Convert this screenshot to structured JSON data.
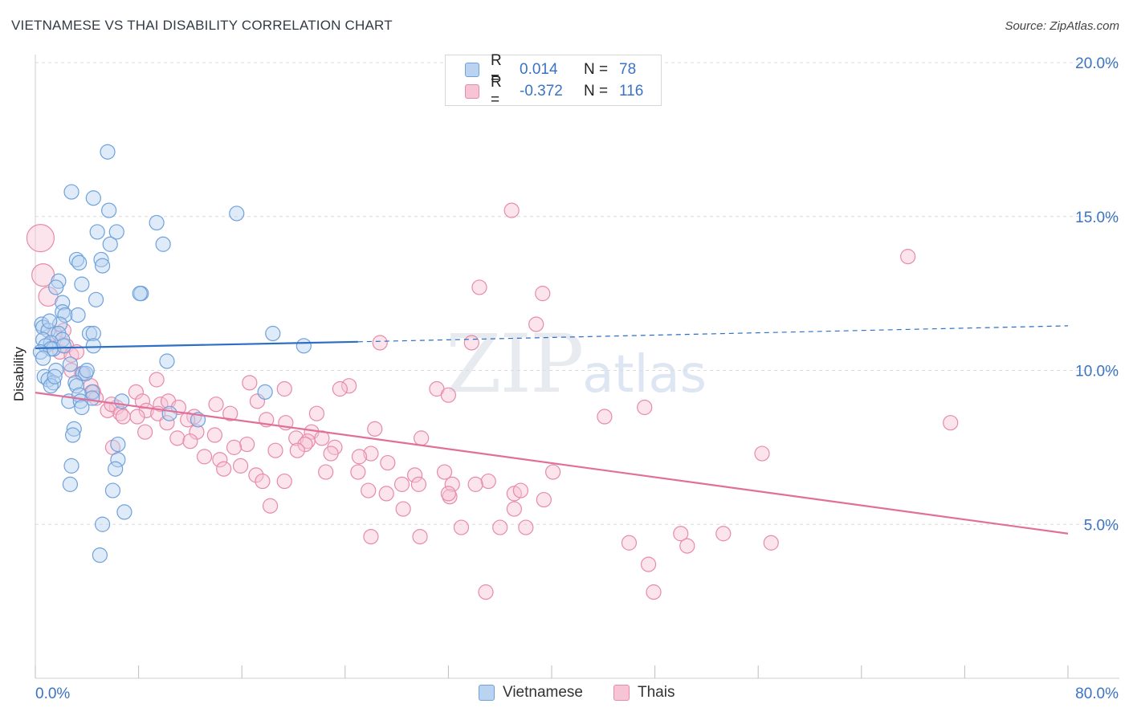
{
  "title": "VIETNAMESE VS THAI DISABILITY CORRELATION CHART",
  "source": "Source: ZipAtlas.com",
  "watermark": {
    "zip": "ZIP",
    "atlas": "atlas"
  },
  "colors": {
    "vietnamese": "#6fa1dc",
    "vietnamese_fill": "#b9d3f0",
    "vietnamese_line": "#2d6fc4",
    "thais": "#e88aa8",
    "thais_fill": "#f6c4d4",
    "thais_line": "#e0709a",
    "axis_label": "#3a73c4",
    "grid": "#dcdcdc"
  },
  "legend": {
    "rows": [
      {
        "r_label": "R =",
        "r_value": "0.014",
        "n_label": "N =",
        "n_value": "78"
      },
      {
        "r_label": "R =",
        "r_value": "-0.372",
        "n_label": "N =",
        "n_value": "116"
      }
    ]
  },
  "bottom_legend": {
    "series1": "Vietnamese",
    "series2": "Thais"
  },
  "chart_data": {
    "type": "scatter",
    "title": "VIETNAMESE VS THAI DISABILITY CORRELATION CHART",
    "xlabel": "",
    "ylabel": "Disability",
    "xlim": [
      0,
      80
    ],
    "ylim": [
      0,
      20
    ],
    "x_tick_labels": [
      "0.0%",
      "80.0%"
    ],
    "y_tick_labels": [
      "5.0%",
      "10.0%",
      "15.0%",
      "20.0%"
    ],
    "y_ticks": [
      5,
      10,
      15,
      20
    ],
    "grid": true,
    "legend_position": "top-center",
    "series": [
      {
        "name": "Vietnamese",
        "r": 0.014,
        "n": 78,
        "trend": {
          "x0": 0,
          "y0": 10.72,
          "x_solid_end": 25,
          "y_solid_end": 10.93,
          "x1": 80,
          "y1": 11.45
        },
        "points": [
          [
            5.6,
            17.1
          ],
          [
            2.8,
            15.8
          ],
          [
            4.5,
            15.6
          ],
          [
            5.7,
            15.2
          ],
          [
            15.6,
            15.1
          ],
          [
            9.4,
            14.8
          ],
          [
            4.8,
            14.5
          ],
          [
            6.3,
            14.5
          ],
          [
            5.8,
            14.1
          ],
          [
            9.9,
            14.1
          ],
          [
            3.2,
            13.6
          ],
          [
            5.1,
            13.6
          ],
          [
            3.4,
            13.5
          ],
          [
            5.2,
            13.4
          ],
          [
            1.8,
            12.9
          ],
          [
            3.6,
            12.8
          ],
          [
            1.6,
            12.7
          ],
          [
            8.2,
            12.5
          ],
          [
            8.1,
            12.5
          ],
          [
            4.7,
            12.3
          ],
          [
            2.1,
            12.2
          ],
          [
            2.1,
            11.9
          ],
          [
            2.3,
            11.8
          ],
          [
            3.3,
            11.8
          ],
          [
            0.5,
            11.5
          ],
          [
            0.6,
            11.4
          ],
          [
            1.9,
            11.5
          ],
          [
            1.0,
            11.3
          ],
          [
            1.8,
            11.2
          ],
          [
            4.2,
            11.2
          ],
          [
            4.5,
            11.2
          ],
          [
            18.4,
            11.2
          ],
          [
            0.6,
            11.0
          ],
          [
            2.1,
            11.0
          ],
          [
            1.2,
            10.9
          ],
          [
            0.8,
            10.8
          ],
          [
            1.4,
            10.7
          ],
          [
            2.2,
            10.8
          ],
          [
            4.5,
            10.8
          ],
          [
            20.8,
            10.8
          ],
          [
            1.2,
            10.7
          ],
          [
            0.4,
            10.6
          ],
          [
            0.6,
            10.4
          ],
          [
            10.2,
            10.3
          ],
          [
            1.6,
            10.0
          ],
          [
            3.7,
            9.9
          ],
          [
            3.9,
            9.9
          ],
          [
            0.7,
            9.8
          ],
          [
            1.0,
            9.7
          ],
          [
            3.1,
            9.6
          ],
          [
            1.4,
            9.6
          ],
          [
            3.2,
            9.5
          ],
          [
            1.2,
            9.5
          ],
          [
            2.6,
            9.0
          ],
          [
            6.7,
            9.0
          ],
          [
            4.4,
            9.3
          ],
          [
            3.4,
            9.2
          ],
          [
            17.8,
            9.3
          ],
          [
            4.4,
            9.1
          ],
          [
            3.5,
            9.0
          ],
          [
            3.6,
            8.8
          ],
          [
            10.4,
            8.6
          ],
          [
            12.6,
            8.4
          ],
          [
            3.0,
            8.1
          ],
          [
            2.9,
            7.9
          ],
          [
            6.4,
            7.6
          ],
          [
            6.4,
            7.1
          ],
          [
            6.2,
            6.8
          ],
          [
            2.8,
            6.9
          ],
          [
            2.7,
            6.3
          ],
          [
            6.0,
            6.1
          ],
          [
            6.9,
            5.4
          ],
          [
            5.2,
            5.0
          ],
          [
            5.0,
            4.0
          ],
          [
            1.1,
            11.6
          ],
          [
            2.7,
            10.2
          ],
          [
            4.0,
            10.0
          ],
          [
            1.5,
            9.8
          ]
        ]
      },
      {
        "name": "Thais",
        "r": -0.372,
        "n": 116,
        "trend": {
          "x0": 0,
          "y0": 9.28,
          "x1": 80,
          "y1": 4.7
        },
        "points": [
          [
            0.4,
            14.3
          ],
          [
            0.6,
            13.1
          ],
          [
            1.0,
            12.4
          ],
          [
            36.9,
            15.2
          ],
          [
            67.6,
            13.7
          ],
          [
            34.4,
            12.7
          ],
          [
            39.3,
            12.5
          ],
          [
            38.8,
            11.5
          ],
          [
            26.7,
            10.9
          ],
          [
            33.8,
            10.9
          ],
          [
            2.2,
            11.3
          ],
          [
            1.5,
            11.2
          ],
          [
            1.9,
            10.6
          ],
          [
            2.4,
            10.8
          ],
          [
            2.8,
            10.5
          ],
          [
            3.2,
            10.6
          ],
          [
            2.8,
            10.0
          ],
          [
            3.6,
            9.9
          ],
          [
            9.4,
            9.7
          ],
          [
            16.6,
            9.6
          ],
          [
            24.3,
            9.5
          ],
          [
            23.6,
            9.4
          ],
          [
            4.3,
            9.5
          ],
          [
            4.5,
            9.3
          ],
          [
            7.8,
            9.3
          ],
          [
            19.3,
            9.4
          ],
          [
            31.1,
            9.4
          ],
          [
            32.0,
            9.2
          ],
          [
            17.2,
            9.0
          ],
          [
            4.7,
            9.1
          ],
          [
            8.3,
            9.0
          ],
          [
            9.7,
            8.9
          ],
          [
            10.3,
            9.0
          ],
          [
            11.1,
            8.8
          ],
          [
            14.0,
            8.9
          ],
          [
            8.6,
            8.7
          ],
          [
            6.3,
            8.8
          ],
          [
            5.6,
            8.7
          ],
          [
            5.9,
            8.9
          ],
          [
            6.6,
            8.6
          ],
          [
            9.5,
            8.6
          ],
          [
            15.1,
            8.6
          ],
          [
            21.8,
            8.6
          ],
          [
            44.1,
            8.5
          ],
          [
            47.2,
            8.8
          ],
          [
            70.9,
            8.3
          ],
          [
            6.8,
            8.5
          ],
          [
            7.9,
            8.5
          ],
          [
            12.3,
            8.5
          ],
          [
            11.8,
            8.4
          ],
          [
            10.2,
            8.3
          ],
          [
            17.9,
            8.4
          ],
          [
            19.4,
            8.3
          ],
          [
            26.3,
            8.1
          ],
          [
            8.5,
            8.0
          ],
          [
            12.5,
            8.0
          ],
          [
            13.9,
            7.9
          ],
          [
            21.4,
            8.0
          ],
          [
            11.0,
            7.8
          ],
          [
            12.0,
            7.7
          ],
          [
            20.2,
            7.8
          ],
          [
            21.1,
            7.7
          ],
          [
            20.9,
            7.6
          ],
          [
            22.2,
            7.8
          ],
          [
            29.9,
            7.8
          ],
          [
            16.4,
            7.6
          ],
          [
            15.4,
            7.5
          ],
          [
            6.0,
            7.5
          ],
          [
            23.2,
            7.5
          ],
          [
            18.6,
            7.4
          ],
          [
            20.3,
            7.4
          ],
          [
            56.3,
            7.3
          ],
          [
            13.1,
            7.2
          ],
          [
            14.3,
            7.1
          ],
          [
            22.9,
            7.3
          ],
          [
            26.0,
            7.3
          ],
          [
            27.3,
            7.0
          ],
          [
            25.1,
            7.2
          ],
          [
            15.9,
            6.9
          ],
          [
            14.6,
            6.8
          ],
          [
            17.1,
            6.6
          ],
          [
            22.5,
            6.7
          ],
          [
            25.0,
            6.7
          ],
          [
            29.4,
            6.6
          ],
          [
            31.7,
            6.7
          ],
          [
            40.1,
            6.7
          ],
          [
            17.6,
            6.4
          ],
          [
            19.3,
            6.4
          ],
          [
            28.4,
            6.3
          ],
          [
            25.8,
            6.1
          ],
          [
            29.7,
            6.3
          ],
          [
            32.3,
            6.3
          ],
          [
            35.1,
            6.4
          ],
          [
            37.1,
            6.0
          ],
          [
            37.6,
            6.1
          ],
          [
            27.2,
            6.0
          ],
          [
            34.1,
            6.3
          ],
          [
            39.4,
            5.8
          ],
          [
            18.2,
            5.6
          ],
          [
            28.5,
            5.5
          ],
          [
            37.1,
            5.5
          ],
          [
            32.1,
            5.9
          ],
          [
            32.0,
            6.0
          ],
          [
            26.0,
            4.6
          ],
          [
            29.8,
            4.6
          ],
          [
            33.0,
            4.9
          ],
          [
            36.0,
            4.9
          ],
          [
            38.0,
            4.9
          ],
          [
            50.0,
            4.7
          ],
          [
            53.3,
            4.7
          ],
          [
            46.0,
            4.4
          ],
          [
            57.0,
            4.4
          ],
          [
            47.5,
            3.7
          ],
          [
            50.5,
            4.3
          ],
          [
            34.9,
            2.8
          ],
          [
            47.9,
            2.8
          ]
        ]
      }
    ]
  }
}
